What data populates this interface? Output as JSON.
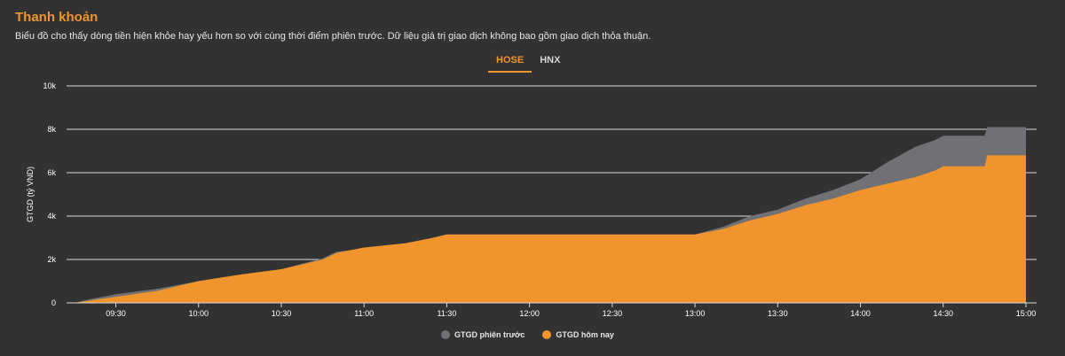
{
  "header": {
    "title": "Thanh khoản",
    "subtitle": "Biểu đồ cho thấy dòng tiền hiện khỏe hay yếu hơn so với cùng thời điểm phiên trước. Dữ liệu giá trị giao dịch không bao gồm giao dịch thỏa thuận."
  },
  "tabs": [
    {
      "label": "HOSE",
      "active": true
    },
    {
      "label": "HNX",
      "active": false
    }
  ],
  "chart_data": {
    "type": "area",
    "ylabel": "GTGD (tỷ VND)",
    "ylim": [
      0,
      10000
    ],
    "yticks": [
      0,
      2000,
      4000,
      6000,
      8000,
      10000
    ],
    "ytick_labels": [
      "0",
      "2k",
      "4k",
      "6k",
      "8k",
      "10k"
    ],
    "xlim": [
      "09:15",
      "15:00"
    ],
    "xticks": [
      "09:30",
      "10:00",
      "10:30",
      "11:00",
      "11:30",
      "12:00",
      "12:30",
      "13:00",
      "13:30",
      "14:00",
      "14:30",
      "15:00"
    ],
    "grid": true,
    "legend_position": "bottom",
    "series": [
      {
        "name": "GTGD phiên trước",
        "color": "#717175",
        "points": [
          [
            "09:15",
            0
          ],
          [
            "09:20",
            150
          ],
          [
            "09:30",
            400
          ],
          [
            "09:45",
            650
          ],
          [
            "10:00",
            1000
          ],
          [
            "10:15",
            1300
          ],
          [
            "10:30",
            1550
          ],
          [
            "10:45",
            2050
          ],
          [
            "10:50",
            2350
          ],
          [
            "11:00",
            2500
          ],
          [
            "11:15",
            2700
          ],
          [
            "11:25",
            3000
          ],
          [
            "11:30",
            3150
          ],
          [
            "13:00",
            3150
          ],
          [
            "13:10",
            3500
          ],
          [
            "13:20",
            4000
          ],
          [
            "13:30",
            4300
          ],
          [
            "13:40",
            4800
          ],
          [
            "13:50",
            5200
          ],
          [
            "14:00",
            5700
          ],
          [
            "14:10",
            6500
          ],
          [
            "14:20",
            7200
          ],
          [
            "14:27",
            7500
          ],
          [
            "14:30",
            7700
          ],
          [
            "14:45",
            7700
          ],
          [
            "14:46",
            8100
          ],
          [
            "15:00",
            8100
          ]
        ]
      },
      {
        "name": "GTGD hôm nay",
        "color": "#f0952d",
        "points": [
          [
            "09:15",
            0
          ],
          [
            "09:20",
            100
          ],
          [
            "09:30",
            280
          ],
          [
            "09:45",
            550
          ],
          [
            "10:00",
            1000
          ],
          [
            "10:15",
            1300
          ],
          [
            "10:30",
            1550
          ],
          [
            "10:45",
            2000
          ],
          [
            "10:50",
            2300
          ],
          [
            "11:00",
            2550
          ],
          [
            "11:15",
            2750
          ],
          [
            "11:25",
            3000
          ],
          [
            "11:30",
            3150
          ],
          [
            "13:00",
            3150
          ],
          [
            "13:10",
            3400
          ],
          [
            "13:20",
            3800
          ],
          [
            "13:30",
            4100
          ],
          [
            "13:40",
            4500
          ],
          [
            "13:50",
            4800
          ],
          [
            "14:00",
            5200
          ],
          [
            "14:10",
            5500
          ],
          [
            "14:20",
            5800
          ],
          [
            "14:27",
            6100
          ],
          [
            "14:30",
            6300
          ],
          [
            "14:45",
            6300
          ],
          [
            "14:46",
            6800
          ],
          [
            "15:00",
            6800
          ]
        ]
      }
    ]
  }
}
